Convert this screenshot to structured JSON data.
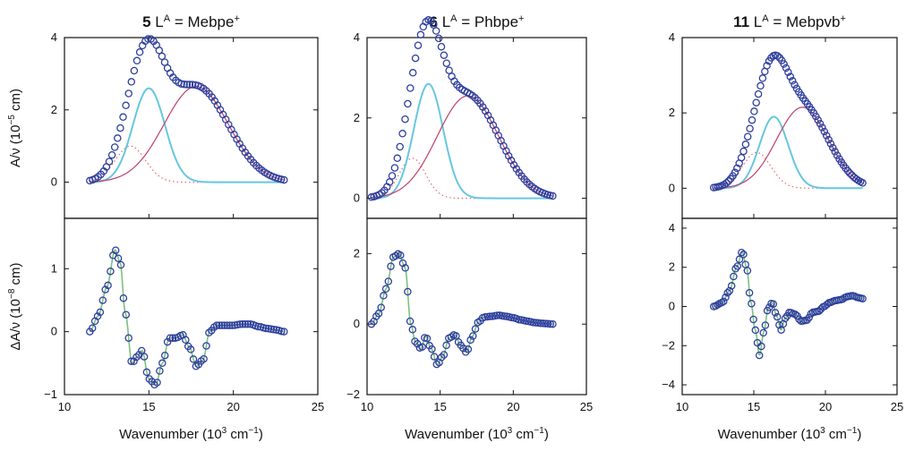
{
  "figure": {
    "xlabel_base": "Wavenumber (10",
    "xlabel_sup": "3",
    "xlabel_mid": " cm",
    "xlabel_sup2": "−1",
    "xlabel_end": ")",
    "ylabel_top": "A/ν (10",
    "ylabel_top_sup": "−5",
    "ylabel_top_end": " cm)",
    "ylabel_bottom": "ΔA/ν (10",
    "ylabel_bottom_sup": "−8",
    "ylabel_bottom_end": " cm)",
    "colors": {
      "marker": "#2f3f9e",
      "component_a": "#67c7df",
      "component_b": "#c0406b",
      "component_c": "#e06a6a",
      "fit": "#7cc080"
    }
  },
  "chart_data": [
    {
      "type": "scatter",
      "title_number": "5",
      "title_text": "L",
      "title_sup": "A",
      "title_rest": " = Mebpe",
      "title_charge": "+",
      "absorption": {
        "xlim": [
          10,
          25
        ],
        "ylim": [
          -1,
          4
        ],
        "yticks": [
          0,
          2,
          4
        ],
        "x_range": [
          11.5,
          23
        ],
        "series": [
          {
            "name": "",
            "kind": "data",
            "peaks": [
              [
                13.9,
                1.0,
                0.9
              ],
              [
                15.0,
                2.6,
                0.95
              ],
              [
                17.8,
                2.65,
                1.9
              ]
            ]
          },
          {
            "name": "",
            "kind": "component_c",
            "peaks": [
              [
                13.9,
                1.0,
                0.9
              ]
            ]
          },
          {
            "name": "",
            "kind": "component_a",
            "peaks": [
              [
                15.0,
                2.6,
                0.95
              ]
            ]
          },
          {
            "name": "",
            "kind": "component_b",
            "peaks": [
              [
                17.8,
                2.65,
                1.9
              ]
            ]
          }
        ]
      },
      "stark": {
        "xlim": [
          10,
          25
        ],
        "ylim": [
          -1,
          1.8
        ],
        "yticks": [
          -1,
          0,
          1
        ],
        "x": [
          11.5,
          12.0,
          12.5,
          13.0,
          13.3,
          13.6,
          14.0,
          14.3,
          14.6,
          15.0,
          15.4,
          15.8,
          16.2,
          16.6,
          17.0,
          17.4,
          17.8,
          18.2,
          18.6,
          19.0,
          19.5,
          20.0,
          20.5,
          21.0,
          21.5,
          22.0,
          22.5,
          23.0
        ],
        "y": [
          0.0,
          0.25,
          0.7,
          1.3,
          1.1,
          0.3,
          -0.5,
          -0.4,
          -0.3,
          -0.75,
          -0.85,
          -0.5,
          -0.1,
          -0.1,
          -0.05,
          -0.25,
          -0.55,
          -0.45,
          0.0,
          0.1,
          0.1,
          0.1,
          0.12,
          0.12,
          0.08,
          0.05,
          0.03,
          0.0
        ]
      }
    },
    {
      "type": "scatter",
      "title_number": "6",
      "title_text": "L",
      "title_sup": "A",
      "title_rest": " = Phbpe",
      "title_charge": "+",
      "absorption": {
        "xlim": [
          10,
          25
        ],
        "ylim": [
          -0.5,
          4
        ],
        "yticks": [
          0,
          2,
          4
        ],
        "x_range": [
          10.3,
          22.7
        ],
        "series": [
          {
            "name": "",
            "kind": "data",
            "peaks": [
              [
                13.1,
                1.0,
                0.9
              ],
              [
                14.2,
                2.85,
                1.0
              ],
              [
                16.9,
                2.55,
                2.1
              ]
            ]
          },
          {
            "name": "",
            "kind": "component_c",
            "peaks": [
              [
                13.1,
                1.0,
                0.9
              ]
            ]
          },
          {
            "name": "",
            "kind": "component_a",
            "peaks": [
              [
                14.2,
                2.85,
                1.0
              ]
            ]
          },
          {
            "name": "",
            "kind": "component_b",
            "peaks": [
              [
                16.9,
                2.55,
                2.1
              ]
            ]
          }
        ]
      },
      "stark": {
        "xlim": [
          10,
          25
        ],
        "ylim": [
          -2,
          3
        ],
        "yticks": [
          -2,
          0,
          2
        ],
        "x": [
          10.3,
          10.8,
          11.3,
          11.8,
          12.2,
          12.6,
          13.0,
          13.3,
          13.7,
          14.0,
          14.4,
          14.8,
          15.2,
          15.6,
          16.0,
          16.4,
          16.8,
          17.2,
          17.6,
          18.0,
          18.5,
          19.0,
          19.5,
          20.0,
          20.5,
          21.0,
          21.5,
          22.0,
          22.7
        ],
        "y": [
          0.0,
          0.3,
          1.0,
          1.9,
          2.0,
          1.6,
          0.0,
          -0.5,
          -0.7,
          -0.35,
          -0.7,
          -1.15,
          -0.9,
          -0.4,
          -0.3,
          -0.6,
          -0.8,
          -0.35,
          0.05,
          0.2,
          0.22,
          0.25,
          0.22,
          0.18,
          0.12,
          0.08,
          0.04,
          0.02,
          0.0
        ]
      }
    },
    {
      "type": "scatter",
      "title_number": "11",
      "title_text": "L",
      "title_sup": "A",
      "title_rest": " = Mebpvb",
      "title_charge": "+",
      "absorption": {
        "xlim": [
          10,
          25
        ],
        "ylim": [
          -0.8,
          4
        ],
        "yticks": [
          0,
          2,
          4
        ],
        "x_range": [
          12.2,
          22.6
        ],
        "series": [
          {
            "name": "",
            "kind": "data",
            "peaks": [
              [
                15.2,
                0.95,
                1.0
              ],
              [
                16.4,
                1.9,
                1.0
              ],
              [
                18.4,
                2.15,
                1.8
              ]
            ]
          },
          {
            "name": "",
            "kind": "component_c",
            "peaks": [
              [
                15.2,
                0.95,
                1.0
              ]
            ]
          },
          {
            "name": "",
            "kind": "component_a",
            "peaks": [
              [
                16.4,
                1.9,
                1.0
              ]
            ]
          },
          {
            "name": "",
            "kind": "component_b",
            "peaks": [
              [
                18.4,
                2.15,
                1.8
              ]
            ]
          }
        ]
      },
      "stark": {
        "xlim": [
          10,
          25
        ],
        "ylim": [
          -4.5,
          4.5
        ],
        "yticks": [
          -4,
          -2,
          0,
          2,
          4
        ],
        "x": [
          12.2,
          12.8,
          13.3,
          13.8,
          14.2,
          14.5,
          14.8,
          15.1,
          15.4,
          15.7,
          16.0,
          16.3,
          16.6,
          16.9,
          17.2,
          17.5,
          17.9,
          18.3,
          18.7,
          19.1,
          19.5,
          19.9,
          20.3,
          20.7,
          21.1,
          21.5,
          21.9,
          22.3,
          22.6
        ],
        "y": [
          0.0,
          0.2,
          0.8,
          2.0,
          2.8,
          2.0,
          0.2,
          -1.2,
          -2.5,
          -1.3,
          -0.1,
          0.2,
          -0.5,
          -1.2,
          -0.6,
          -0.3,
          -0.4,
          -0.75,
          -0.7,
          -0.3,
          -0.25,
          0.0,
          0.2,
          0.3,
          0.35,
          0.5,
          0.55,
          0.45,
          0.4
        ]
      }
    }
  ]
}
